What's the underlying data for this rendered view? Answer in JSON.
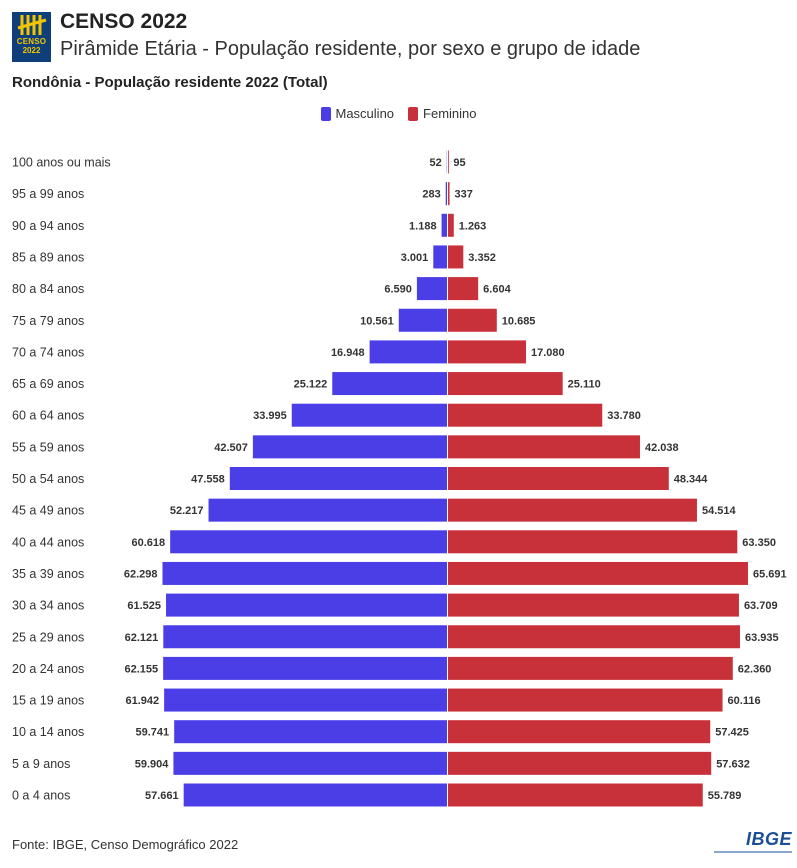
{
  "header": {
    "logo_word": "CENSO",
    "logo_year": "2022",
    "title": "CENSO 2022",
    "subtitle": "Pirâmide Etária - População residente, por sexo e grupo de idade"
  },
  "colors": {
    "male": "#4b3ee6",
    "female": "#c8313a",
    "logo_bg": "#0f3f7a",
    "logo_accent": "#f2c500",
    "ibge_blue": "#1c4f95"
  },
  "footer": {
    "source": "Fonte: IBGE, Censo Demográfico 2022",
    "brand": "IBGE"
  },
  "chart_data": {
    "type": "bar",
    "orientation": "horizontal-diverging",
    "title": "Rondônia - População residente 2022 (Total)",
    "legend_position": "top-center",
    "grid": false,
    "categories": [
      "100 anos ou mais",
      "95 a 99 anos",
      "90 a 94 anos",
      "85 a 89 anos",
      "80 a 84 anos",
      "75 a 79 anos",
      "70 a 74 anos",
      "65 a 69 anos",
      "60 a 64 anos",
      "55 a 59 anos",
      "50 a 54 anos",
      "45 a 49 anos",
      "40 a 44 anos",
      "35 a 39 anos",
      "30 a 34 anos",
      "25 a 29 anos",
      "20 a 24 anos",
      "15 a 19 anos",
      "10 a 14 anos",
      "5 a 9 anos",
      "0 a 4 anos"
    ],
    "series": [
      {
        "name": "Masculino",
        "values": [
          52,
          283,
          1188,
          3001,
          6590,
          10561,
          16948,
          25122,
          33995,
          42507,
          47558,
          52217,
          60618,
          62298,
          61525,
          62121,
          62155,
          61942,
          59741,
          59904,
          57661
        ],
        "labels": [
          "52",
          "283",
          "1.188",
          "3.001",
          "6.590",
          "10.561",
          "16.948",
          "25.122",
          "33.995",
          "42.507",
          "47.558",
          "52.217",
          "60.618",
          "62.298",
          "61.525",
          "62.121",
          "62.155",
          "61.942",
          "59.741",
          "59.904",
          "57.661"
        ]
      },
      {
        "name": "Feminino",
        "values": [
          95,
          337,
          1263,
          3352,
          6604,
          10685,
          17080,
          25110,
          33780,
          42038,
          48344,
          54514,
          63350,
          65691,
          63709,
          63935,
          62360,
          60116,
          57425,
          57632,
          55789
        ],
        "labels": [
          "95",
          "337",
          "1.263",
          "3.352",
          "6.604",
          "10.685",
          "17.080",
          "25.110",
          "33.780",
          "42.038",
          "48.344",
          "54.514",
          "63.350",
          "65.691",
          "63.709",
          "63.935",
          "62.360",
          "60.116",
          "57.425",
          "57.632",
          "55.789"
        ]
      }
    ],
    "xlim": [
      -65691,
      65691
    ]
  }
}
